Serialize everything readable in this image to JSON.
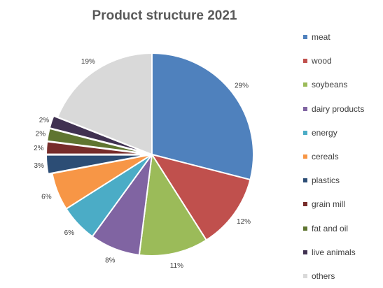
{
  "chart_data": {
    "type": "pie",
    "title": "Product structure 2021",
    "legend_position": "right",
    "start_angle": "12 o'clock, clockwise",
    "slices": [
      {
        "name": "meat",
        "value": 29,
        "label": "29%",
        "color": "#4F81BD"
      },
      {
        "name": "wood",
        "value": 12,
        "label": "12%",
        "color": "#C0504D"
      },
      {
        "name": "soybeans",
        "value": 11,
        "label": "11%",
        "color": "#9BBB59"
      },
      {
        "name": "dairy products",
        "value": 8,
        "label": "8%",
        "color": "#8064A2"
      },
      {
        "name": "energy",
        "value": 6,
        "label": "6%",
        "color": "#4BACC6"
      },
      {
        "name": "cereals",
        "value": 6,
        "label": "6%",
        "color": "#F79646"
      },
      {
        "name": "plastics",
        "value": 3,
        "label": "3%",
        "color": "#2C4D75"
      },
      {
        "name": "grain mill",
        "value": 2,
        "label": "2%",
        "color": "#772C2A"
      },
      {
        "name": "fat and oil",
        "value": 2,
        "label": "2%",
        "color": "#5F7530"
      },
      {
        "name": "live animals",
        "value": 2,
        "label": "2%",
        "color": "#403151"
      },
      {
        "name": "others",
        "value": 19,
        "label": "19%",
        "color": "#D9D9D9"
      }
    ]
  }
}
